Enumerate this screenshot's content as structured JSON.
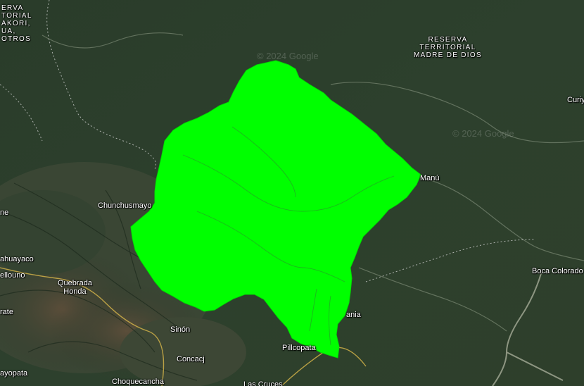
{
  "colors": {
    "highlight": "#00ff00",
    "terrain_dark": "#243524",
    "terrain_lowland": "#2f4530"
  },
  "watermark": "© 2024 Google",
  "labels": {
    "reserve_top_left": [
      "ERVA",
      "TORIAL",
      "AKORI,",
      "UA,",
      "OTROS"
    ],
    "reserve_madre_de_dios": [
      "RESERVA",
      "TERRITORIAL",
      "MADRE DE DIOS"
    ],
    "curiy": "Curiy",
    "manu": "Manú",
    "chunchusmayo": "Chunchusmayo",
    "ne": "ne",
    "ahuayaco": "ahuayaco",
    "ellouno": "ellouno",
    "quebrada_honda": [
      "Quebrada",
      "Honda"
    ],
    "rate": "rate",
    "sinon": "Sinón",
    "boca_colorado": "Boca Colorado",
    "ania": "ania",
    "pillcopata": "Pillcopata",
    "concacj": "Concacj",
    "ayopata": "ayopata",
    "choquecancha": "Choquecancha",
    "las_cruces": "Las Cruces"
  }
}
